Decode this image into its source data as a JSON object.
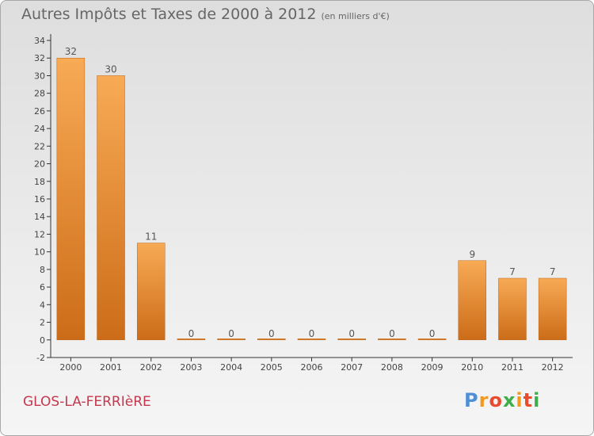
{
  "header": {
    "title": "Autres Impôts et Taxes de 2000 à 2012",
    "subtitle": "(en milliers d'€)"
  },
  "footer": {
    "town": "GLOS-LA-FERRIèRE",
    "logo": {
      "letters": [
        "P",
        "r",
        "o",
        "x",
        "i",
        "t",
        "i"
      ],
      "colors": [
        "#4f8fd6",
        "#f39a1e",
        "#e84b2d",
        "#3fae49",
        "#f39a1e",
        "#e84b2d",
        "#3fae49"
      ]
    }
  },
  "colors": {
    "bar_top": "#f8aa55",
    "bar_bottom": "#cc6c18",
    "bar_edge": "#b9661a"
  },
  "chart_data": {
    "type": "bar",
    "categories": [
      "2000",
      "2001",
      "2002",
      "2003",
      "2004",
      "2005",
      "2006",
      "2007",
      "2008",
      "2009",
      "2010",
      "2011",
      "2012"
    ],
    "values": [
      32,
      30,
      11,
      0,
      0,
      0,
      0,
      0,
      0,
      0,
      9,
      7,
      7
    ],
    "data_labels": [
      "32",
      "30",
      "11",
      "0",
      "0",
      "0",
      "0",
      "0",
      "0",
      "0",
      "9",
      "7",
      "7"
    ],
    "ylim": [
      -2,
      34
    ],
    "yticks": [
      -2,
      0,
      2,
      4,
      6,
      8,
      10,
      12,
      14,
      16,
      18,
      20,
      22,
      24,
      26,
      28,
      30,
      32,
      34
    ],
    "grid": false,
    "xlabel": "",
    "ylabel": ""
  }
}
